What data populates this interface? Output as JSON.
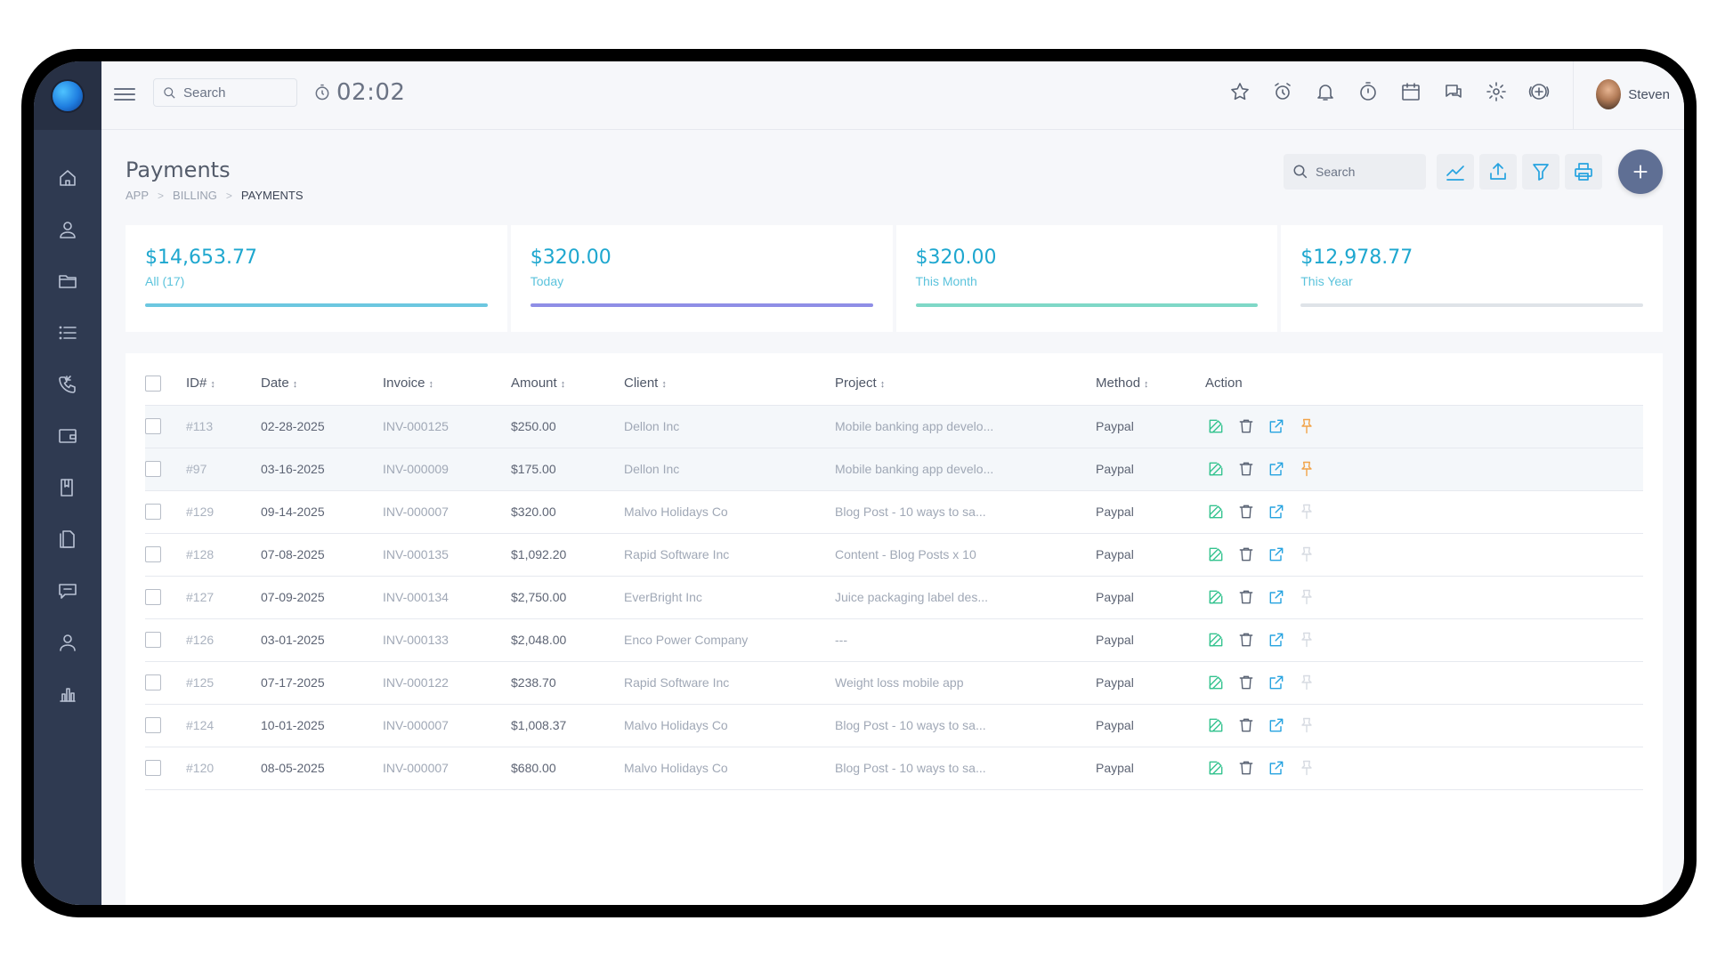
{
  "topbar": {
    "search_placeholder": "Search",
    "timer": "02:02",
    "user_name": "Steven",
    "icons": [
      "star-icon",
      "alarm-icon",
      "bell-icon",
      "stopwatch-icon",
      "calendar-icon",
      "chat-icon",
      "gear-icon",
      "add-circle-icon"
    ]
  },
  "sidebar": {
    "items": [
      "home-icon",
      "users-icon",
      "folder-icon",
      "list-icon",
      "phone-icon",
      "wallet-icon",
      "book-icon",
      "files-icon",
      "support-chat-icon",
      "user-icon",
      "bar-chart-icon"
    ]
  },
  "page": {
    "title": "Payments",
    "breadcrumb": [
      "APP",
      "BILLING",
      "PAYMENTS"
    ],
    "search_placeholder": "Search"
  },
  "stats": [
    {
      "value": "$14,653.77",
      "label": "All (17)",
      "bar_color": "#6cc7e0"
    },
    {
      "value": "$320.00",
      "label": "Today",
      "bar_color": "#8f8ee6"
    },
    {
      "value": "$320.00",
      "label": "This Month",
      "bar_color": "#7fd8c7"
    },
    {
      "value": "$12,978.77",
      "label": "This Year",
      "bar_color": "#dfe3e8"
    }
  ],
  "table": {
    "columns": [
      "ID#",
      "Date",
      "Invoice",
      "Amount",
      "Client",
      "Project",
      "Method",
      "Action"
    ],
    "rows": [
      {
        "id": "#113",
        "date": "02-28-2025",
        "invoice": "INV-000125",
        "amount": "$250.00",
        "client": "Dellon Inc",
        "project": "Mobile banking app develo...",
        "method": "Paypal",
        "pinned": true
      },
      {
        "id": "#97",
        "date": "03-16-2025",
        "invoice": "INV-000009",
        "amount": "$175.00",
        "client": "Dellon Inc",
        "project": "Mobile banking app develo...",
        "method": "Paypal",
        "pinned": true
      },
      {
        "id": "#129",
        "date": "09-14-2025",
        "invoice": "INV-000007",
        "amount": "$320.00",
        "client": "Malvo Holidays Co",
        "project": "Blog Post - 10 ways to sa...",
        "method": "Paypal",
        "pinned": false
      },
      {
        "id": "#128",
        "date": "07-08-2025",
        "invoice": "INV-000135",
        "amount": "$1,092.20",
        "client": "Rapid Software Inc",
        "project": "Content - Blog Posts x 10",
        "method": "Paypal",
        "pinned": false
      },
      {
        "id": "#127",
        "date": "07-09-2025",
        "invoice": "INV-000134",
        "amount": "$2,750.00",
        "client": "EverBright Inc",
        "project": "Juice packaging label des...",
        "method": "Paypal",
        "pinned": false
      },
      {
        "id": "#126",
        "date": "03-01-2025",
        "invoice": "INV-000133",
        "amount": "$2,048.00",
        "client": "Enco Power Company",
        "project": "---",
        "method": "Paypal",
        "pinned": false
      },
      {
        "id": "#125",
        "date": "07-17-2025",
        "invoice": "INV-000122",
        "amount": "$238.70",
        "client": "Rapid Software Inc",
        "project": "Weight loss mobile app",
        "method": "Paypal",
        "pinned": false
      },
      {
        "id": "#124",
        "date": "10-01-2025",
        "invoice": "INV-000007",
        "amount": "$1,008.37",
        "client": "Malvo Holidays Co",
        "project": "Blog Post - 10 ways to sa...",
        "method": "Paypal",
        "pinned": false
      },
      {
        "id": "#120",
        "date": "08-05-2025",
        "invoice": "INV-000007",
        "amount": "$680.00",
        "client": "Malvo Holidays Co",
        "project": "Blog Post - 10 ways to sa...",
        "method": "Paypal",
        "pinned": false
      }
    ]
  }
}
